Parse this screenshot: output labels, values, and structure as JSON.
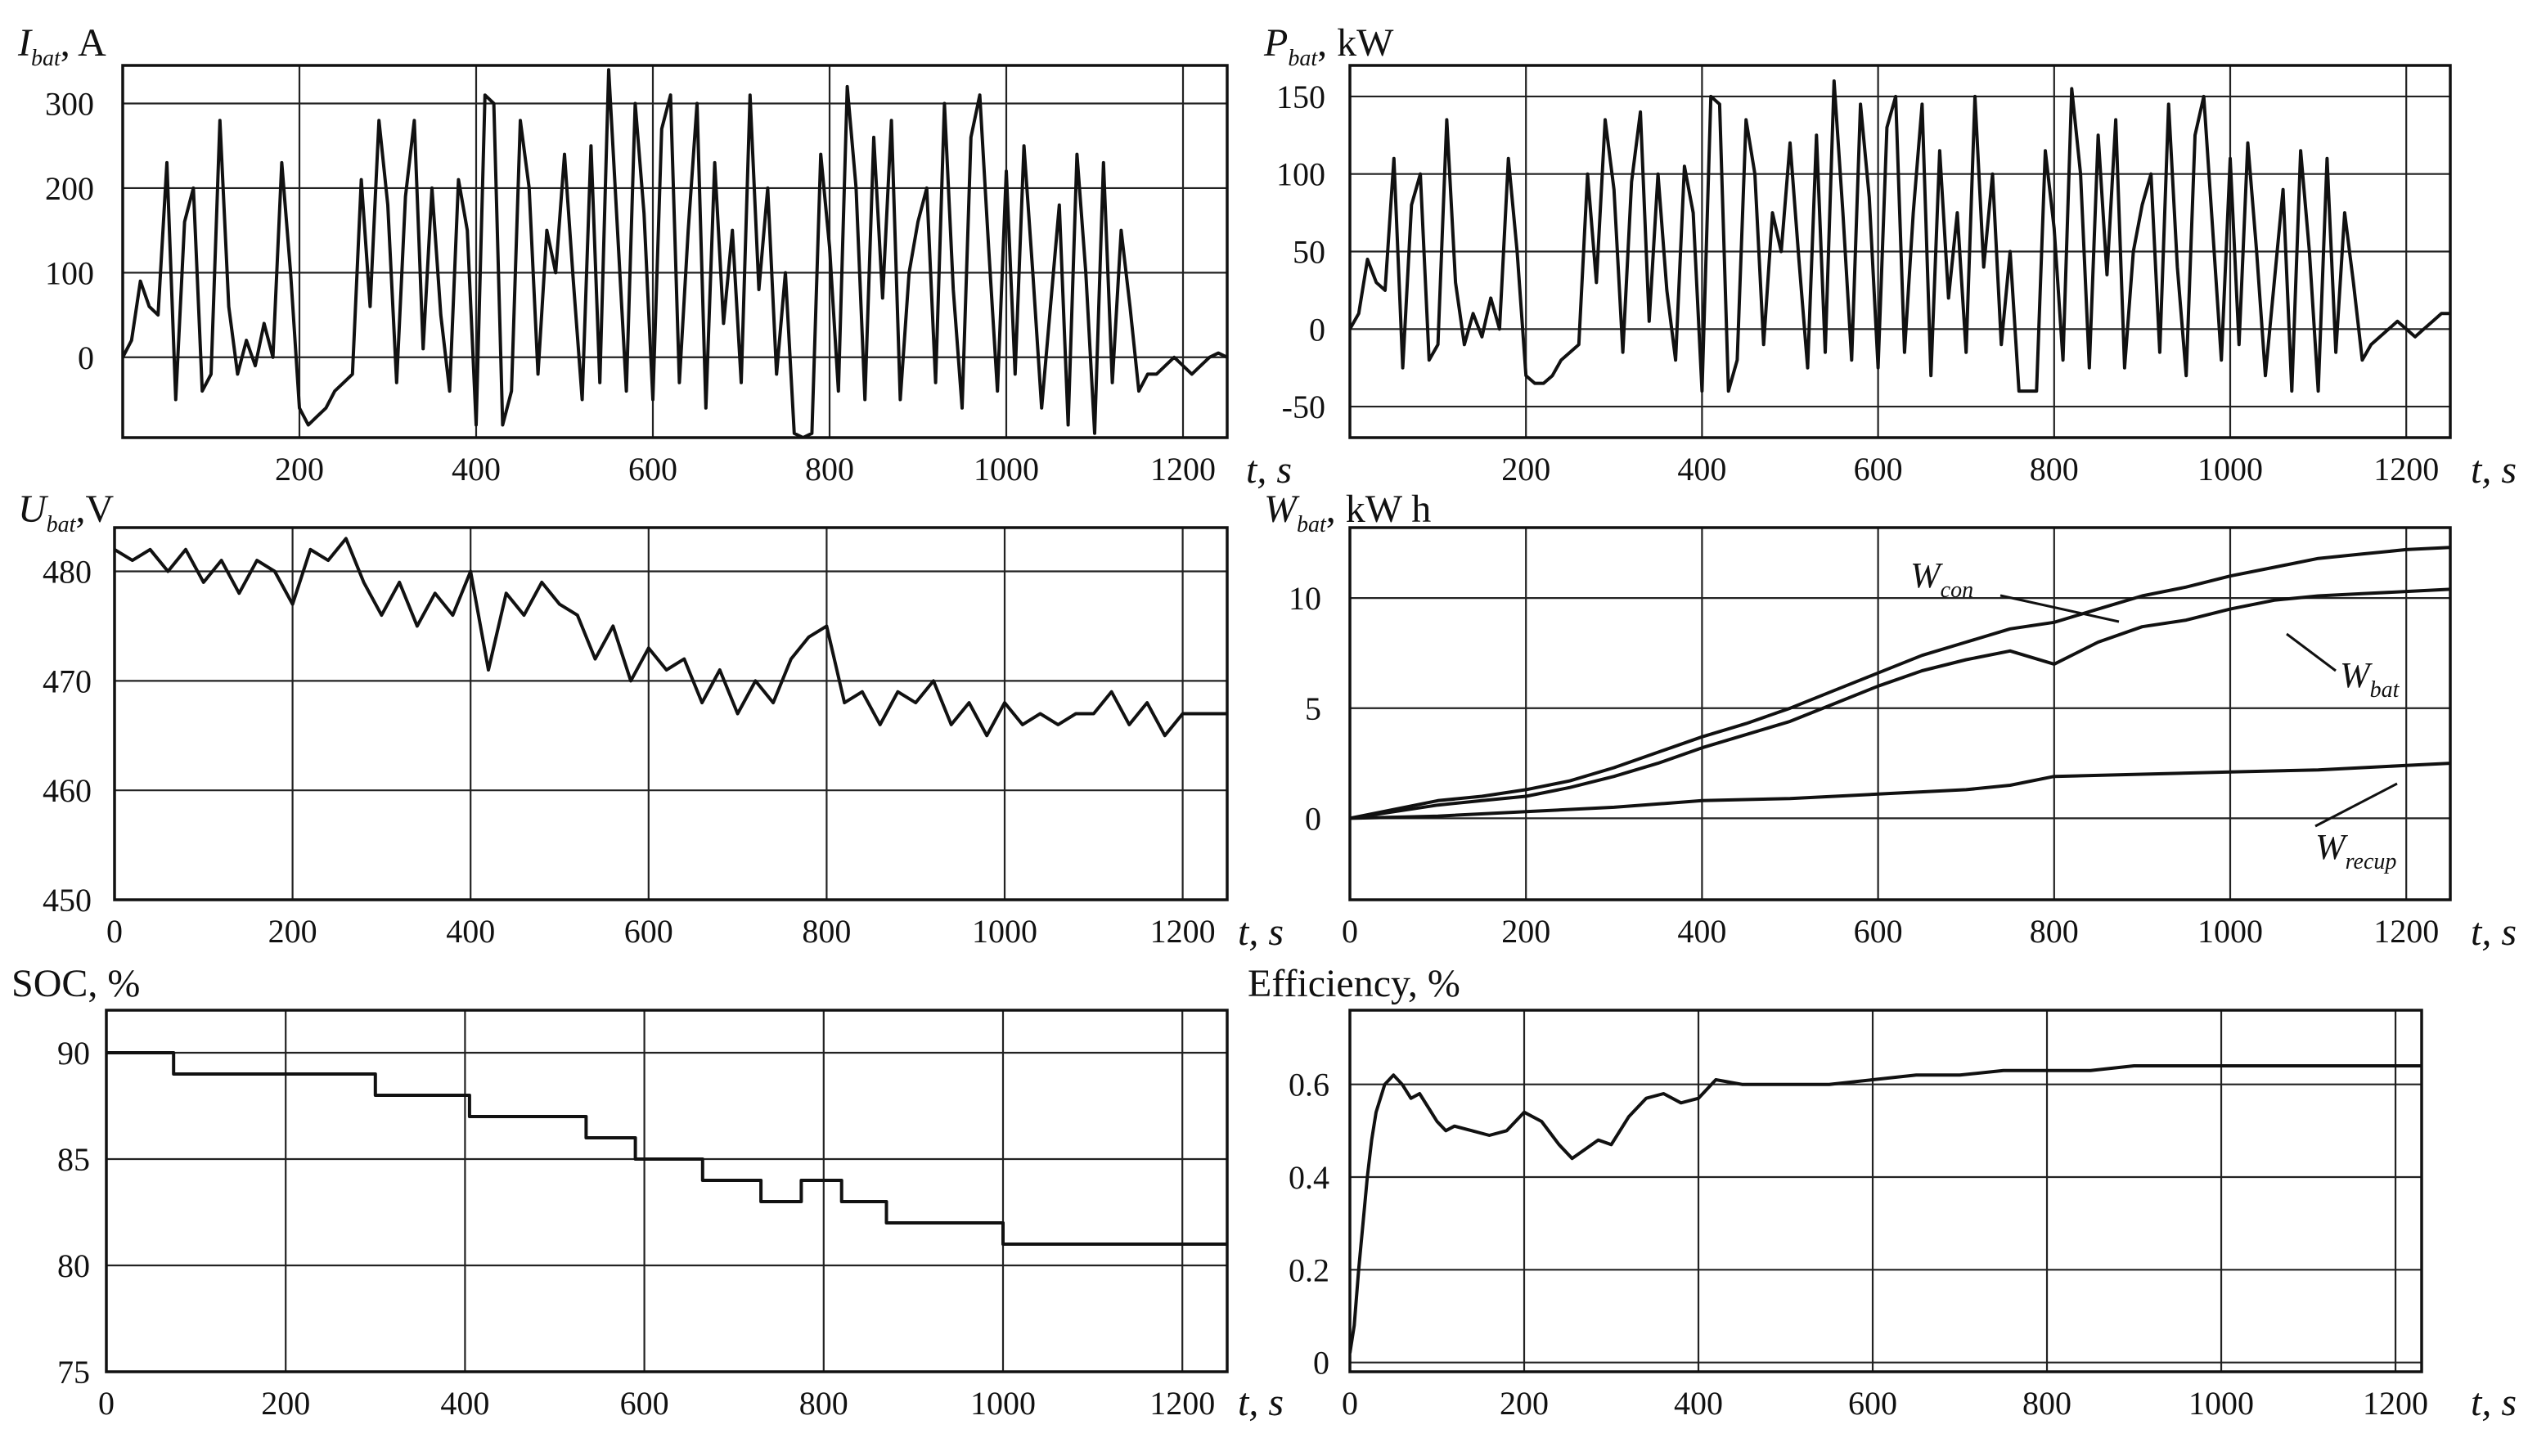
{
  "chart_data": [
    {
      "id": "ibat",
      "type": "line",
      "title": "",
      "ylabel": "I",
      "ylabel_sub": "bat",
      "ylabel_unit": ", A",
      "xlabel": "t, s",
      "xlim": [
        0,
        1250
      ],
      "ylim": [
        -95,
        345
      ],
      "xticks": [
        200,
        400,
        600,
        800,
        1000,
        1200
      ],
      "yticks": [
        0,
        100,
        200,
        300
      ],
      "grid": true,
      "series": [
        {
          "x": [
            0,
            10,
            20,
            30,
            40,
            50,
            60,
            70,
            80,
            90,
            100,
            110,
            120,
            130,
            140,
            150,
            160,
            170,
            180,
            190,
            200,
            210,
            220,
            230,
            240,
            250,
            260,
            270,
            280,
            290,
            300,
            310,
            320,
            330,
            340,
            350,
            360,
            370,
            380,
            390,
            400,
            410,
            420,
            430,
            440,
            450,
            460,
            470,
            480,
            490,
            500,
            510,
            520,
            530,
            540,
            550,
            560,
            570,
            580,
            590,
            600,
            610,
            620,
            630,
            640,
            650,
            660,
            670,
            680,
            690,
            700,
            710,
            720,
            730,
            740,
            750,
            760,
            770,
            780,
            790,
            800,
            810,
            820,
            830,
            840,
            850,
            860,
            870,
            880,
            890,
            900,
            910,
            920,
            930,
            940,
            950,
            960,
            970,
            980,
            990,
            1000,
            1010,
            1020,
            1030,
            1040,
            1050,
            1060,
            1070,
            1080,
            1090,
            1100,
            1110,
            1120,
            1130,
            1140,
            1150,
            1160,
            1170,
            1180,
            1190,
            1200,
            1210,
            1220,
            1230,
            1240,
            1250
          ],
          "y": [
            0,
            20,
            90,
            60,
            50,
            230,
            -50,
            160,
            200,
            -40,
            -20,
            280,
            60,
            -20,
            20,
            -10,
            40,
            0,
            230,
            100,
            -60,
            -80,
            -70,
            -60,
            -40,
            -30,
            -20,
            210,
            60,
            280,
            180,
            -30,
            190,
            280,
            10,
            200,
            50,
            -40,
            210,
            150,
            -80,
            310,
            300,
            -80,
            -40,
            280,
            200,
            -20,
            150,
            100,
            240,
            90,
            -50,
            250,
            -30,
            340,
            150,
            -40,
            300,
            170,
            -50,
            270,
            310,
            -30,
            150,
            300,
            -60,
            230,
            40,
            150,
            -30,
            310,
            80,
            200,
            -20,
            100,
            -90,
            -95,
            -90,
            240,
            130,
            -40,
            320,
            200,
            -50,
            260,
            70,
            280,
            -50,
            100,
            160,
            200,
            -30,
            300,
            80,
            -60,
            260,
            310,
            130,
            -40,
            220,
            -20,
            250,
            100,
            -60,
            60,
            180,
            -80,
            240,
            100,
            -90,
            230,
            -30,
            150,
            60,
            -40,
            -20,
            -20,
            -10,
            0,
            -10,
            -20,
            -10,
            0,
            5,
            0
          ]
        }
      ]
    },
    {
      "id": "pbat",
      "type": "line",
      "title": "",
      "ylabel": "P",
      "ylabel_sub": "bat",
      "ylabel_unit": ", kW",
      "xlabel": "t, s",
      "xlim": [
        0,
        1250
      ],
      "ylim": [
        -70,
        170
      ],
      "xticks": [
        200,
        400,
        600,
        800,
        1000,
        1200
      ],
      "yticks": [
        -50,
        0,
        50,
        100,
        150
      ],
      "grid": true,
      "series": [
        {
          "x": [
            0,
            10,
            20,
            30,
            40,
            50,
            60,
            70,
            80,
            90,
            100,
            110,
            120,
            130,
            140,
            150,
            160,
            170,
            180,
            190,
            200,
            210,
            220,
            230,
            240,
            250,
            260,
            270,
            280,
            290,
            300,
            310,
            320,
            330,
            340,
            350,
            360,
            370,
            380,
            390,
            400,
            410,
            420,
            430,
            440,
            450,
            460,
            470,
            480,
            490,
            500,
            510,
            520,
            530,
            540,
            550,
            560,
            570,
            580,
            590,
            600,
            610,
            620,
            630,
            640,
            650,
            660,
            670,
            680,
            690,
            700,
            710,
            720,
            730,
            740,
            750,
            760,
            770,
            780,
            790,
            800,
            810,
            820,
            830,
            840,
            850,
            860,
            870,
            880,
            890,
            900,
            910,
            920,
            930,
            940,
            950,
            960,
            970,
            980,
            990,
            1000,
            1010,
            1020,
            1030,
            1040,
            1050,
            1060,
            1070,
            1080,
            1090,
            1100,
            1110,
            1120,
            1130,
            1140,
            1150,
            1160,
            1170,
            1180,
            1190,
            1200,
            1210,
            1220,
            1230,
            1240,
            1250
          ],
          "y": [
            0,
            10,
            45,
            30,
            25,
            110,
            -25,
            80,
            100,
            -20,
            -10,
            135,
            30,
            -10,
            10,
            -5,
            20,
            0,
            110,
            50,
            -30,
            -35,
            -35,
            -30,
            -20,
            -15,
            -10,
            100,
            30,
            135,
            90,
            -15,
            95,
            140,
            5,
            100,
            25,
            -20,
            105,
            75,
            -40,
            150,
            145,
            -40,
            -20,
            135,
            100,
            -10,
            75,
            50,
            120,
            45,
            -25,
            125,
            -15,
            160,
            75,
            -20,
            145,
            85,
            -25,
            130,
            150,
            -15,
            75,
            145,
            -30,
            115,
            20,
            75,
            -15,
            150,
            40,
            100,
            -10,
            50,
            -40,
            -40,
            -40,
            115,
            65,
            -20,
            155,
            100,
            -25,
            125,
            35,
            135,
            -25,
            50,
            80,
            100,
            -15,
            145,
            40,
            -30,
            125,
            150,
            65,
            -20,
            110,
            -10,
            120,
            50,
            -30,
            30,
            90,
            -40,
            115,
            50,
            -40,
            110,
            -15,
            75,
            30,
            -20,
            -10,
            -5,
            0,
            5,
            0,
            -5,
            0,
            5,
            10,
            10
          ]
        }
      ]
    },
    {
      "id": "ubat",
      "type": "line",
      "title": "",
      "ylabel": "U",
      "ylabel_sub": "bat",
      "ylabel_unit": ",V",
      "xlabel": "t, s",
      "xlim": [
        0,
        1250
      ],
      "ylim": [
        450,
        484
      ],
      "xticks": [
        0,
        200,
        400,
        600,
        800,
        1000,
        1200
      ],
      "yticks": [
        450,
        460,
        470,
        480
      ],
      "grid": true,
      "series": [
        {
          "x": [
            0,
            20,
            40,
            60,
            80,
            100,
            120,
            140,
            160,
            180,
            200,
            220,
            240,
            260,
            280,
            300,
            320,
            340,
            360,
            380,
            400,
            420,
            440,
            460,
            480,
            500,
            520,
            540,
            560,
            580,
            600,
            620,
            640,
            660,
            680,
            700,
            720,
            740,
            760,
            780,
            800,
            820,
            840,
            860,
            880,
            900,
            920,
            940,
            960,
            980,
            1000,
            1020,
            1040,
            1060,
            1080,
            1100,
            1120,
            1140,
            1160,
            1180,
            1200,
            1220,
            1240,
            1250
          ],
          "y": [
            482,
            481,
            482,
            480,
            482,
            479,
            481,
            478,
            481,
            480,
            477,
            482,
            481,
            483,
            479,
            476,
            479,
            475,
            478,
            476,
            480,
            471,
            478,
            476,
            479,
            477,
            476,
            472,
            475,
            470,
            473,
            471,
            472,
            468,
            471,
            467,
            470,
            468,
            472,
            474,
            475,
            468,
            469,
            466,
            469,
            468,
            470,
            466,
            468,
            465,
            468,
            466,
            467,
            466,
            467,
            467,
            469,
            466,
            468,
            465,
            467,
            467,
            467,
            467
          ]
        }
      ]
    },
    {
      "id": "wbat",
      "type": "line",
      "title": "",
      "ylabel": "W",
      "ylabel_sub": "bat",
      "ylabel_unit": ", kW h",
      "xlabel": "t, s",
      "xlim": [
        0,
        1250
      ],
      "ylim": [
        -3.7,
        13.2
      ],
      "xticks": [
        0,
        200,
        400,
        600,
        800,
        1000,
        1200
      ],
      "yticks": [
        0,
        5,
        10
      ],
      "grid": true,
      "series": [
        {
          "name": "W_con",
          "label": "W",
          "label_sub": "con",
          "x": [
            0,
            50,
            100,
            150,
            200,
            250,
            300,
            350,
            400,
            450,
            500,
            550,
            600,
            650,
            700,
            750,
            800,
            850,
            900,
            950,
            1000,
            1050,
            1100,
            1150,
            1200,
            1250
          ],
          "y": [
            0,
            0.4,
            0.8,
            1.0,
            1.3,
            1.7,
            2.3,
            3.0,
            3.7,
            4.3,
            5.0,
            5.8,
            6.6,
            7.4,
            8.0,
            8.6,
            8.9,
            9.5,
            10.1,
            10.5,
            11.0,
            11.4,
            11.8,
            12.0,
            12.2,
            12.3
          ]
        },
        {
          "name": "W_bat",
          "label": "W",
          "label_sub": "bat",
          "x": [
            0,
            50,
            100,
            150,
            200,
            250,
            300,
            350,
            400,
            450,
            500,
            550,
            600,
            650,
            700,
            750,
            800,
            850,
            900,
            950,
            1000,
            1050,
            1100,
            1150,
            1200,
            1250
          ],
          "y": [
            0,
            0.3,
            0.6,
            0.8,
            1.0,
            1.4,
            1.9,
            2.5,
            3.2,
            3.8,
            4.4,
            5.2,
            6.0,
            6.7,
            7.2,
            7.6,
            7.0,
            8.0,
            8.7,
            9.0,
            9.5,
            9.9,
            10.1,
            10.2,
            10.3,
            10.4
          ]
        },
        {
          "name": "W_recup",
          "label": "W",
          "label_sub": "recup",
          "x": [
            0,
            100,
            200,
            300,
            400,
            500,
            600,
            700,
            750,
            800,
            900,
            1000,
            1100,
            1200,
            1250
          ],
          "y": [
            0,
            0.1,
            0.3,
            0.5,
            0.8,
            0.9,
            1.1,
            1.3,
            1.5,
            1.9,
            2.0,
            2.1,
            2.2,
            2.4,
            2.5
          ]
        }
      ]
    },
    {
      "id": "soc",
      "type": "line",
      "title": "",
      "ylabel": "SOC, %",
      "xlabel": "t, s",
      "xlim": [
        0,
        1250
      ],
      "ylim": [
        75,
        92
      ],
      "xticks": [
        0,
        200,
        400,
        600,
        800,
        1000,
        1200
      ],
      "yticks": [
        75,
        80,
        85,
        90
      ],
      "grid": true,
      "series": [
        {
          "x": [
            0,
            75,
            75,
            300,
            300,
            405,
            405,
            535,
            535,
            590,
            590,
            665,
            665,
            730,
            730,
            775,
            775,
            820,
            820,
            870,
            870,
            1000,
            1000,
            1250
          ],
          "y": [
            90,
            90,
            89,
            89,
            88,
            88,
            87,
            87,
            86,
            86,
            85,
            85,
            84,
            84,
            83,
            83,
            84,
            84,
            83,
            83,
            82,
            82,
            81,
            81
          ]
        }
      ]
    },
    {
      "id": "efficiency",
      "type": "line",
      "title": "",
      "ylabel": "Efficiency, %",
      "xlabel": "t, s",
      "xlim": [
        0,
        1230
      ],
      "ylim": [
        -0.02,
        0.76
      ],
      "xticks": [
        0,
        200,
        400,
        600,
        800,
        1000,
        1200
      ],
      "yticks": [
        0,
        0.2,
        0.4,
        0.6
      ],
      "grid": true,
      "series": [
        {
          "x": [
            0,
            5,
            10,
            15,
            20,
            25,
            30,
            40,
            50,
            60,
            70,
            80,
            90,
            100,
            110,
            120,
            140,
            160,
            180,
            200,
            220,
            240,
            255,
            270,
            285,
            300,
            320,
            340,
            360,
            380,
            400,
            420,
            450,
            500,
            550,
            600,
            650,
            700,
            750,
            800,
            850,
            900,
            950,
            1000,
            1050,
            1100,
            1150,
            1200,
            1230
          ],
          "y": [
            0.02,
            0.08,
            0.2,
            0.3,
            0.4,
            0.48,
            0.54,
            0.6,
            0.62,
            0.6,
            0.57,
            0.58,
            0.55,
            0.52,
            0.5,
            0.51,
            0.5,
            0.49,
            0.5,
            0.54,
            0.52,
            0.47,
            0.44,
            0.46,
            0.48,
            0.47,
            0.53,
            0.57,
            0.58,
            0.56,
            0.57,
            0.61,
            0.6,
            0.6,
            0.6,
            0.61,
            0.62,
            0.62,
            0.63,
            0.63,
            0.63,
            0.64,
            0.64,
            0.64,
            0.64,
            0.64,
            0.64,
            0.64,
            0.64
          ]
        }
      ]
    }
  ]
}
